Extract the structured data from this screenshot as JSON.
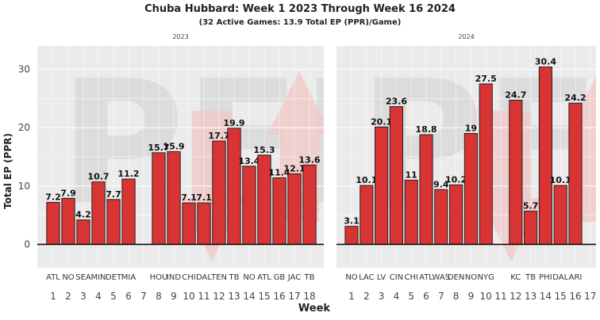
{
  "title": "Chuba Hubbard: Week 1 2023 Through Week 16 2024",
  "subtitle": "(32 Active Games: 13.9 Total EP (PPR)/Game)",
  "watermark": "PFR",
  "colors": {
    "bar_fill": "#d93434",
    "bar_stroke": "#222222",
    "panel_bg": "#ebebeb",
    "grid": "#ffffff",
    "watermark_letters": "#dcdcdc",
    "watermark_arrow": "#f1c8c8"
  },
  "chart_data": {
    "type": "bar",
    "xlabel": "Week",
    "ylabel": "Total EP (PPR)",
    "ylim": [
      -4,
      34
    ],
    "yticks": [
      0,
      10,
      20,
      30
    ],
    "grid": true,
    "panels": [
      {
        "label": "2023",
        "weeks": [
          1,
          2,
          3,
          4,
          5,
          6,
          7,
          8,
          9,
          10,
          11,
          12,
          13,
          14,
          15,
          16,
          17,
          18
        ],
        "bars": [
          {
            "week": 1,
            "team": "ATL",
            "value": 7.2
          },
          {
            "week": 2,
            "team": "NO",
            "value": 7.9
          },
          {
            "week": 3,
            "team": "SEA",
            "value": 4.2
          },
          {
            "week": 4,
            "team": "MIN",
            "value": 10.7
          },
          {
            "week": 5,
            "team": "DET",
            "value": 7.7
          },
          {
            "week": 6,
            "team": "MIA",
            "value": 11.2
          },
          {
            "week": 8,
            "team": "HOU",
            "value": 15.7
          },
          {
            "week": 9,
            "team": "IND",
            "value": 15.9
          },
          {
            "week": 10,
            "team": "CHI",
            "value": 7.1
          },
          {
            "week": 11,
            "team": "DAL",
            "value": 7.1
          },
          {
            "week": 12,
            "team": "TEN",
            "value": 17.7
          },
          {
            "week": 13,
            "team": "TB",
            "value": 19.9
          },
          {
            "week": 14,
            "team": "NO",
            "value": 13.4
          },
          {
            "week": 15,
            "team": "ATL",
            "value": 15.3
          },
          {
            "week": 16,
            "team": "GB",
            "value": 11.4
          },
          {
            "week": 17,
            "team": "JAC",
            "value": 12.1
          },
          {
            "week": 18,
            "team": "TB",
            "value": 13.6
          }
        ]
      },
      {
        "label": "2024",
        "weeks": [
          1,
          2,
          3,
          4,
          5,
          6,
          7,
          8,
          9,
          10,
          11,
          12,
          13,
          14,
          15,
          16,
          17
        ],
        "bars": [
          {
            "week": 1,
            "team": "NO",
            "value": 3.1
          },
          {
            "week": 2,
            "team": "LAC",
            "value": 10.1
          },
          {
            "week": 3,
            "team": "LV",
            "value": 20.1
          },
          {
            "week": 4,
            "team": "CIN",
            "value": 23.6
          },
          {
            "week": 5,
            "team": "CHI",
            "value": 11
          },
          {
            "week": 6,
            "team": "ATL",
            "value": 18.8
          },
          {
            "week": 7,
            "team": "WAS",
            "value": 9.4
          },
          {
            "week": 8,
            "team": "DEN",
            "value": 10.2
          },
          {
            "week": 9,
            "team": "NO",
            "value": 19
          },
          {
            "week": 10,
            "team": "NYG",
            "value": 27.5
          },
          {
            "week": 12,
            "team": "KC",
            "value": 24.7
          },
          {
            "week": 13,
            "team": "TB",
            "value": 5.7
          },
          {
            "week": 14,
            "team": "PHI",
            "value": 30.4
          },
          {
            "week": 15,
            "team": "DAL",
            "value": 10.1
          },
          {
            "week": 16,
            "team": "ARI",
            "value": 24.2
          }
        ]
      }
    ]
  }
}
